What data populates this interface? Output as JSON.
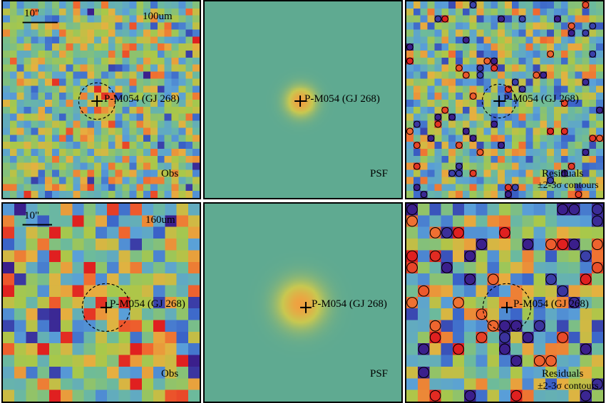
{
  "figure": {
    "top_row": {
      "band": "100um",
      "scalebar": "10\"",
      "source": "P-M054 (GJ 268)",
      "panels": [
        {
          "tag": "Obs"
        },
        {
          "tag": "PSF"
        },
        {
          "tag": "Residuals",
          "sub": "±2-3σ contours"
        }
      ]
    },
    "bottom_row": {
      "band": "160um",
      "scalebar": "10\"",
      "source": "P-M054 (GJ 268)",
      "panels": [
        {
          "tag": "Obs"
        },
        {
          "tag": "PSF"
        },
        {
          "tag": "Residuals",
          "sub": "±2-3σ contours"
        }
      ]
    },
    "colors": {
      "psf_background": "#5faa91",
      "psf_peak": "#f0a040",
      "colormap": [
        "#3b1f8c",
        "#3a62c8",
        "#5aa0d8",
        "#6dbb9a",
        "#a8c84a",
        "#e6b040",
        "#f06a30",
        "#e02020"
      ]
    }
  }
}
